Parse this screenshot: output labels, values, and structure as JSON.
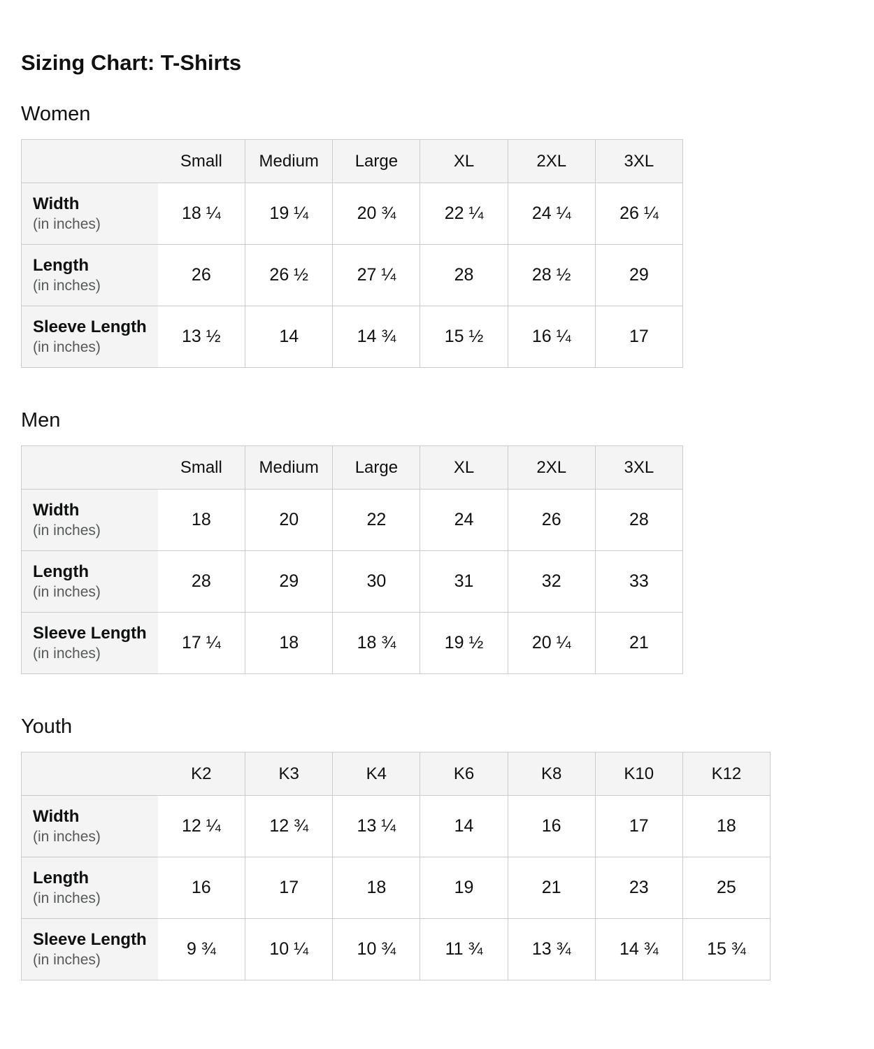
{
  "page": {
    "title": "Sizing Chart: T-Shirts"
  },
  "colors": {
    "table_header_bg": "#f4f4f4",
    "table_border": "#cccccc",
    "text_primary": "#0f1111",
    "text_secondary": "#565959"
  },
  "sections": [
    {
      "heading": "Women",
      "columns": [
        "Small",
        "Medium",
        "Large",
        "XL",
        "2XL",
        "3XL"
      ],
      "rows": [
        {
          "label": "Width",
          "unit": "(in inches)",
          "values": [
            "18 ¼",
            "19 ¼",
            "20 ¾",
            "22 ¼",
            "24 ¼",
            "26 ¼"
          ]
        },
        {
          "label": "Length",
          "unit": "(in inches)",
          "values": [
            "26",
            "26 ½",
            "27 ¼",
            "28",
            "28 ½",
            "29"
          ]
        },
        {
          "label": "Sleeve Length",
          "unit": "(in inches)",
          "values": [
            "13 ½",
            "14",
            "14 ¾",
            "15 ½",
            "16 ¼",
            "17"
          ]
        }
      ]
    },
    {
      "heading": "Men",
      "columns": [
        "Small",
        "Medium",
        "Large",
        "XL",
        "2XL",
        "3XL"
      ],
      "rows": [
        {
          "label": "Width",
          "unit": "(in inches)",
          "values": [
            "18",
            "20",
            "22",
            "24",
            "26",
            "28"
          ]
        },
        {
          "label": "Length",
          "unit": "(in inches)",
          "values": [
            "28",
            "29",
            "30",
            "31",
            "32",
            "33"
          ]
        },
        {
          "label": "Sleeve Length",
          "unit": "(in inches)",
          "values": [
            "17 ¼",
            "18",
            "18 ¾",
            "19 ½",
            "20 ¼",
            "21"
          ]
        }
      ]
    },
    {
      "heading": "Youth",
      "columns": [
        "K2",
        "K3",
        "K4",
        "K6",
        "K8",
        "K10",
        "K12"
      ],
      "rows": [
        {
          "label": "Width",
          "unit": "(in inches)",
          "values": [
            "12 ¼",
            "12 ¾",
            "13 ¼",
            "14",
            "16",
            "17",
            "18"
          ]
        },
        {
          "label": "Length",
          "unit": "(in inches)",
          "values": [
            "16",
            "17",
            "18",
            "19",
            "21",
            "23",
            "25"
          ]
        },
        {
          "label": "Sleeve Length",
          "unit": "(in inches)",
          "values": [
            "9 ¾",
            "10 ¼",
            "10 ¾",
            "11 ¾",
            "13 ¾",
            "14 ¾",
            "15 ¾"
          ]
        }
      ]
    }
  ]
}
